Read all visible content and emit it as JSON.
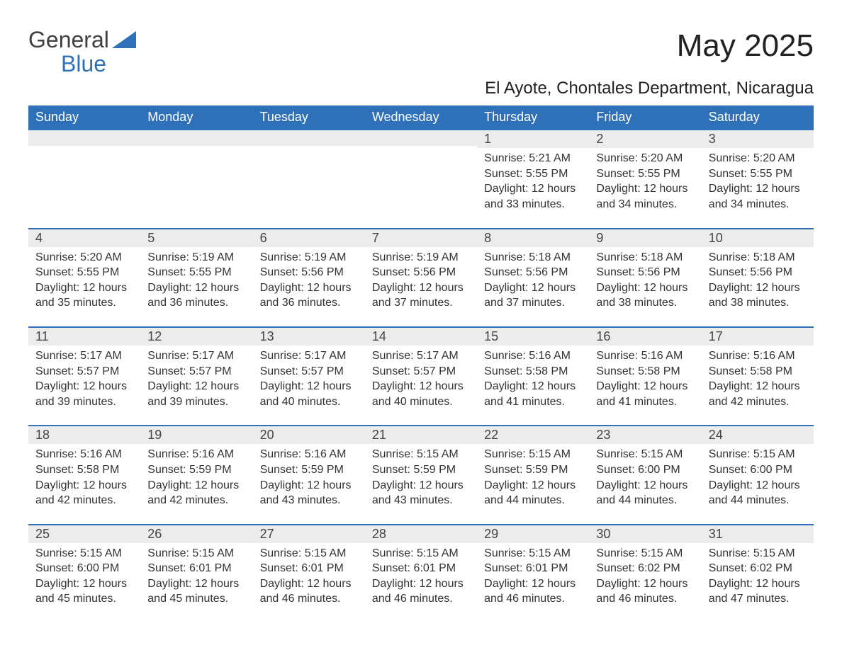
{
  "brand": {
    "name_part1": "General",
    "name_part2": "Blue",
    "text_color": "#404040",
    "accent_color": "#2f71b8"
  },
  "title": "May 2025",
  "location": "El Ayote, Chontales Department, Nicaragua",
  "colors": {
    "header_bg": "#2f71b8",
    "header_text": "#ffffff",
    "daybar_bg": "#ececec",
    "daybar_border": "#2f71b8",
    "body_text": "#333333",
    "page_bg": "#ffffff"
  },
  "typography": {
    "title_fontsize": 44,
    "location_fontsize": 24,
    "weekday_fontsize": 18,
    "daynum_fontsize": 18,
    "body_fontsize": 16
  },
  "weekdays": [
    "Sunday",
    "Monday",
    "Tuesday",
    "Wednesday",
    "Thursday",
    "Friday",
    "Saturday"
  ],
  "weeks": [
    [
      {
        "empty": true
      },
      {
        "empty": true
      },
      {
        "empty": true
      },
      {
        "empty": true
      },
      {
        "day": "1",
        "sunrise": "Sunrise: 5:21 AM",
        "sunset": "Sunset: 5:55 PM",
        "daylight1": "Daylight: 12 hours",
        "daylight2": "and 33 minutes."
      },
      {
        "day": "2",
        "sunrise": "Sunrise: 5:20 AM",
        "sunset": "Sunset: 5:55 PM",
        "daylight1": "Daylight: 12 hours",
        "daylight2": "and 34 minutes."
      },
      {
        "day": "3",
        "sunrise": "Sunrise: 5:20 AM",
        "sunset": "Sunset: 5:55 PM",
        "daylight1": "Daylight: 12 hours",
        "daylight2": "and 34 minutes."
      }
    ],
    [
      {
        "day": "4",
        "sunrise": "Sunrise: 5:20 AM",
        "sunset": "Sunset: 5:55 PM",
        "daylight1": "Daylight: 12 hours",
        "daylight2": "and 35 minutes."
      },
      {
        "day": "5",
        "sunrise": "Sunrise: 5:19 AM",
        "sunset": "Sunset: 5:55 PM",
        "daylight1": "Daylight: 12 hours",
        "daylight2": "and 36 minutes."
      },
      {
        "day": "6",
        "sunrise": "Sunrise: 5:19 AM",
        "sunset": "Sunset: 5:56 PM",
        "daylight1": "Daylight: 12 hours",
        "daylight2": "and 36 minutes."
      },
      {
        "day": "7",
        "sunrise": "Sunrise: 5:19 AM",
        "sunset": "Sunset: 5:56 PM",
        "daylight1": "Daylight: 12 hours",
        "daylight2": "and 37 minutes."
      },
      {
        "day": "8",
        "sunrise": "Sunrise: 5:18 AM",
        "sunset": "Sunset: 5:56 PM",
        "daylight1": "Daylight: 12 hours",
        "daylight2": "and 37 minutes."
      },
      {
        "day": "9",
        "sunrise": "Sunrise: 5:18 AM",
        "sunset": "Sunset: 5:56 PM",
        "daylight1": "Daylight: 12 hours",
        "daylight2": "and 38 minutes."
      },
      {
        "day": "10",
        "sunrise": "Sunrise: 5:18 AM",
        "sunset": "Sunset: 5:56 PM",
        "daylight1": "Daylight: 12 hours",
        "daylight2": "and 38 minutes."
      }
    ],
    [
      {
        "day": "11",
        "sunrise": "Sunrise: 5:17 AM",
        "sunset": "Sunset: 5:57 PM",
        "daylight1": "Daylight: 12 hours",
        "daylight2": "and 39 minutes."
      },
      {
        "day": "12",
        "sunrise": "Sunrise: 5:17 AM",
        "sunset": "Sunset: 5:57 PM",
        "daylight1": "Daylight: 12 hours",
        "daylight2": "and 39 minutes."
      },
      {
        "day": "13",
        "sunrise": "Sunrise: 5:17 AM",
        "sunset": "Sunset: 5:57 PM",
        "daylight1": "Daylight: 12 hours",
        "daylight2": "and 40 minutes."
      },
      {
        "day": "14",
        "sunrise": "Sunrise: 5:17 AM",
        "sunset": "Sunset: 5:57 PM",
        "daylight1": "Daylight: 12 hours",
        "daylight2": "and 40 minutes."
      },
      {
        "day": "15",
        "sunrise": "Sunrise: 5:16 AM",
        "sunset": "Sunset: 5:58 PM",
        "daylight1": "Daylight: 12 hours",
        "daylight2": "and 41 minutes."
      },
      {
        "day": "16",
        "sunrise": "Sunrise: 5:16 AM",
        "sunset": "Sunset: 5:58 PM",
        "daylight1": "Daylight: 12 hours",
        "daylight2": "and 41 minutes."
      },
      {
        "day": "17",
        "sunrise": "Sunrise: 5:16 AM",
        "sunset": "Sunset: 5:58 PM",
        "daylight1": "Daylight: 12 hours",
        "daylight2": "and 42 minutes."
      }
    ],
    [
      {
        "day": "18",
        "sunrise": "Sunrise: 5:16 AM",
        "sunset": "Sunset: 5:58 PM",
        "daylight1": "Daylight: 12 hours",
        "daylight2": "and 42 minutes."
      },
      {
        "day": "19",
        "sunrise": "Sunrise: 5:16 AM",
        "sunset": "Sunset: 5:59 PM",
        "daylight1": "Daylight: 12 hours",
        "daylight2": "and 42 minutes."
      },
      {
        "day": "20",
        "sunrise": "Sunrise: 5:16 AM",
        "sunset": "Sunset: 5:59 PM",
        "daylight1": "Daylight: 12 hours",
        "daylight2": "and 43 minutes."
      },
      {
        "day": "21",
        "sunrise": "Sunrise: 5:15 AM",
        "sunset": "Sunset: 5:59 PM",
        "daylight1": "Daylight: 12 hours",
        "daylight2": "and 43 minutes."
      },
      {
        "day": "22",
        "sunrise": "Sunrise: 5:15 AM",
        "sunset": "Sunset: 5:59 PM",
        "daylight1": "Daylight: 12 hours",
        "daylight2": "and 44 minutes."
      },
      {
        "day": "23",
        "sunrise": "Sunrise: 5:15 AM",
        "sunset": "Sunset: 6:00 PM",
        "daylight1": "Daylight: 12 hours",
        "daylight2": "and 44 minutes."
      },
      {
        "day": "24",
        "sunrise": "Sunrise: 5:15 AM",
        "sunset": "Sunset: 6:00 PM",
        "daylight1": "Daylight: 12 hours",
        "daylight2": "and 44 minutes."
      }
    ],
    [
      {
        "day": "25",
        "sunrise": "Sunrise: 5:15 AM",
        "sunset": "Sunset: 6:00 PM",
        "daylight1": "Daylight: 12 hours",
        "daylight2": "and 45 minutes."
      },
      {
        "day": "26",
        "sunrise": "Sunrise: 5:15 AM",
        "sunset": "Sunset: 6:01 PM",
        "daylight1": "Daylight: 12 hours",
        "daylight2": "and 45 minutes."
      },
      {
        "day": "27",
        "sunrise": "Sunrise: 5:15 AM",
        "sunset": "Sunset: 6:01 PM",
        "daylight1": "Daylight: 12 hours",
        "daylight2": "and 46 minutes."
      },
      {
        "day": "28",
        "sunrise": "Sunrise: 5:15 AM",
        "sunset": "Sunset: 6:01 PM",
        "daylight1": "Daylight: 12 hours",
        "daylight2": "and 46 minutes."
      },
      {
        "day": "29",
        "sunrise": "Sunrise: 5:15 AM",
        "sunset": "Sunset: 6:01 PM",
        "daylight1": "Daylight: 12 hours",
        "daylight2": "and 46 minutes."
      },
      {
        "day": "30",
        "sunrise": "Sunrise: 5:15 AM",
        "sunset": "Sunset: 6:02 PM",
        "daylight1": "Daylight: 12 hours",
        "daylight2": "and 46 minutes."
      },
      {
        "day": "31",
        "sunrise": "Sunrise: 5:15 AM",
        "sunset": "Sunset: 6:02 PM",
        "daylight1": "Daylight: 12 hours",
        "daylight2": "and 47 minutes."
      }
    ]
  ]
}
